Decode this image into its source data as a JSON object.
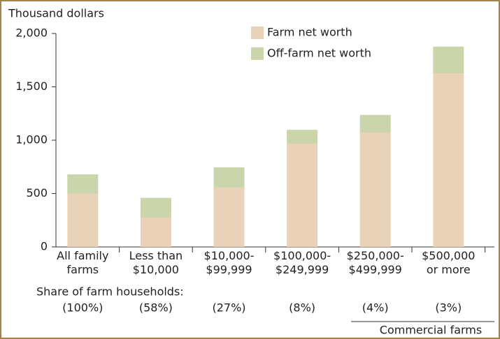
{
  "chart_data": {
    "type": "stacked_bar",
    "y_axis_label": "Thousand dollars",
    "categories": [
      "All family\nfarms",
      "Less than\n$10,000",
      "$10,000-\n$99,999",
      "$100,000-\n$249,999",
      "$250,000-\n$499,999",
      "$500,000\nor more"
    ],
    "series": [
      {
        "name": "Farm net worth",
        "color": "#e9d3b8",
        "values": [
          500,
          275,
          556,
          967,
          1072,
          1627
        ]
      },
      {
        "name": "Off-farm net worth",
        "color": "#cbd5ab",
        "values": [
          180,
          185,
          190,
          130,
          165,
          250
        ]
      }
    ],
    "ylim": [
      0,
      2000
    ],
    "yticks": [
      0,
      500,
      {
        "value": 1000,
        "label": "1,000"
      },
      {
        "value": 1500,
        "label": "1,500"
      },
      {
        "value": 2000,
        "label": "2,000"
      }
    ],
    "share_title": "Share of farm households:",
    "shares": [
      "(100%)",
      "(58%)",
      "(27%)",
      "(8%)",
      "(4%)",
      "(3%)"
    ],
    "annotation": "Commercial farms"
  }
}
